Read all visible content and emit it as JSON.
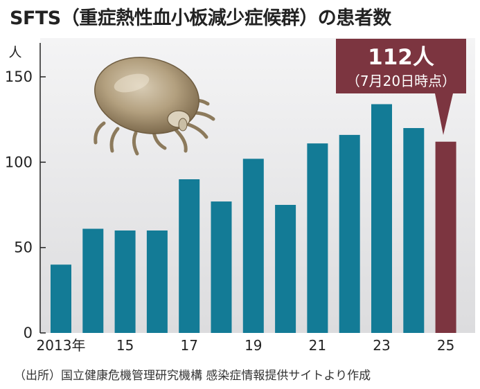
{
  "title": "SFTS（重症熱性血小板減少症候群）の患者数",
  "source": "（出所）国立健康危機管理研究機構 感染症情報提供サイトより作成",
  "callout": {
    "value": "112人",
    "note": "（7月20日時点）"
  },
  "colors": {
    "bar": "#137b96",
    "highlight": "#7c3540",
    "plot_bg": "#e9e9ea"
  },
  "illustration": "tick-icon",
  "chart_data": {
    "type": "bar",
    "title": "SFTS（重症熱性血小板減少症候群）の患者数",
    "ylabel": "人",
    "xlabel": "",
    "categories": [
      "2013",
      "2014",
      "2015",
      "2016",
      "2017",
      "2018",
      "2019",
      "2020",
      "2021",
      "2022",
      "2023",
      "2024",
      "2025"
    ],
    "values": [
      40,
      61,
      60,
      60,
      90,
      77,
      102,
      75,
      111,
      116,
      134,
      120,
      112
    ],
    "x_tick_labels": [
      "2013年",
      "",
      "15",
      "",
      "17",
      "",
      "19",
      "",
      "21",
      "",
      "23",
      "",
      "25"
    ],
    "y_ticks": [
      0,
      50,
      100,
      150
    ],
    "ylim": [
      0,
      165
    ],
    "grid": false,
    "highlight_index": 12
  }
}
